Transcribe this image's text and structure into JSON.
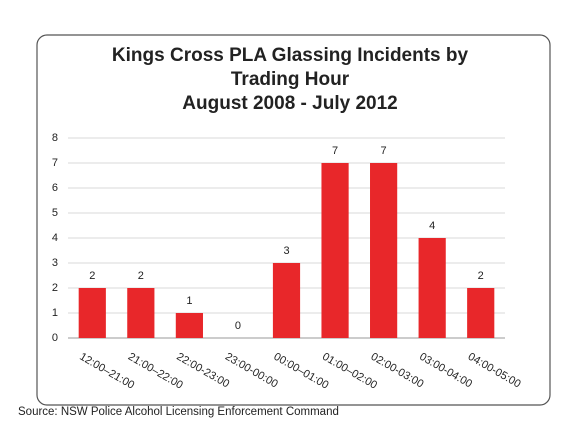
{
  "chart_data": {
    "type": "bar",
    "title": "Kings Cross PLA Glassing Incidents by Trading Hour",
    "subtitle": "August 2008 - July 2012",
    "categories": [
      "12:00–21:00",
      "21:00–22:00",
      "22:00-23:00",
      "23:00-00:00",
      "00:00–01:00",
      "01:00–02:00",
      "02:00-03:00",
      "03:00-04:00",
      "04:00-05:00"
    ],
    "values": [
      2,
      2,
      1,
      0,
      3,
      7,
      7,
      4,
      2
    ],
    "color": "#e8272a",
    "ylim": [
      0,
      8
    ],
    "yticks": [
      0,
      1,
      2,
      3,
      4,
      5,
      6,
      7,
      8
    ],
    "grid": true
  },
  "source": "Source: NSW Police Alcohol Licensing Enforcement Command"
}
